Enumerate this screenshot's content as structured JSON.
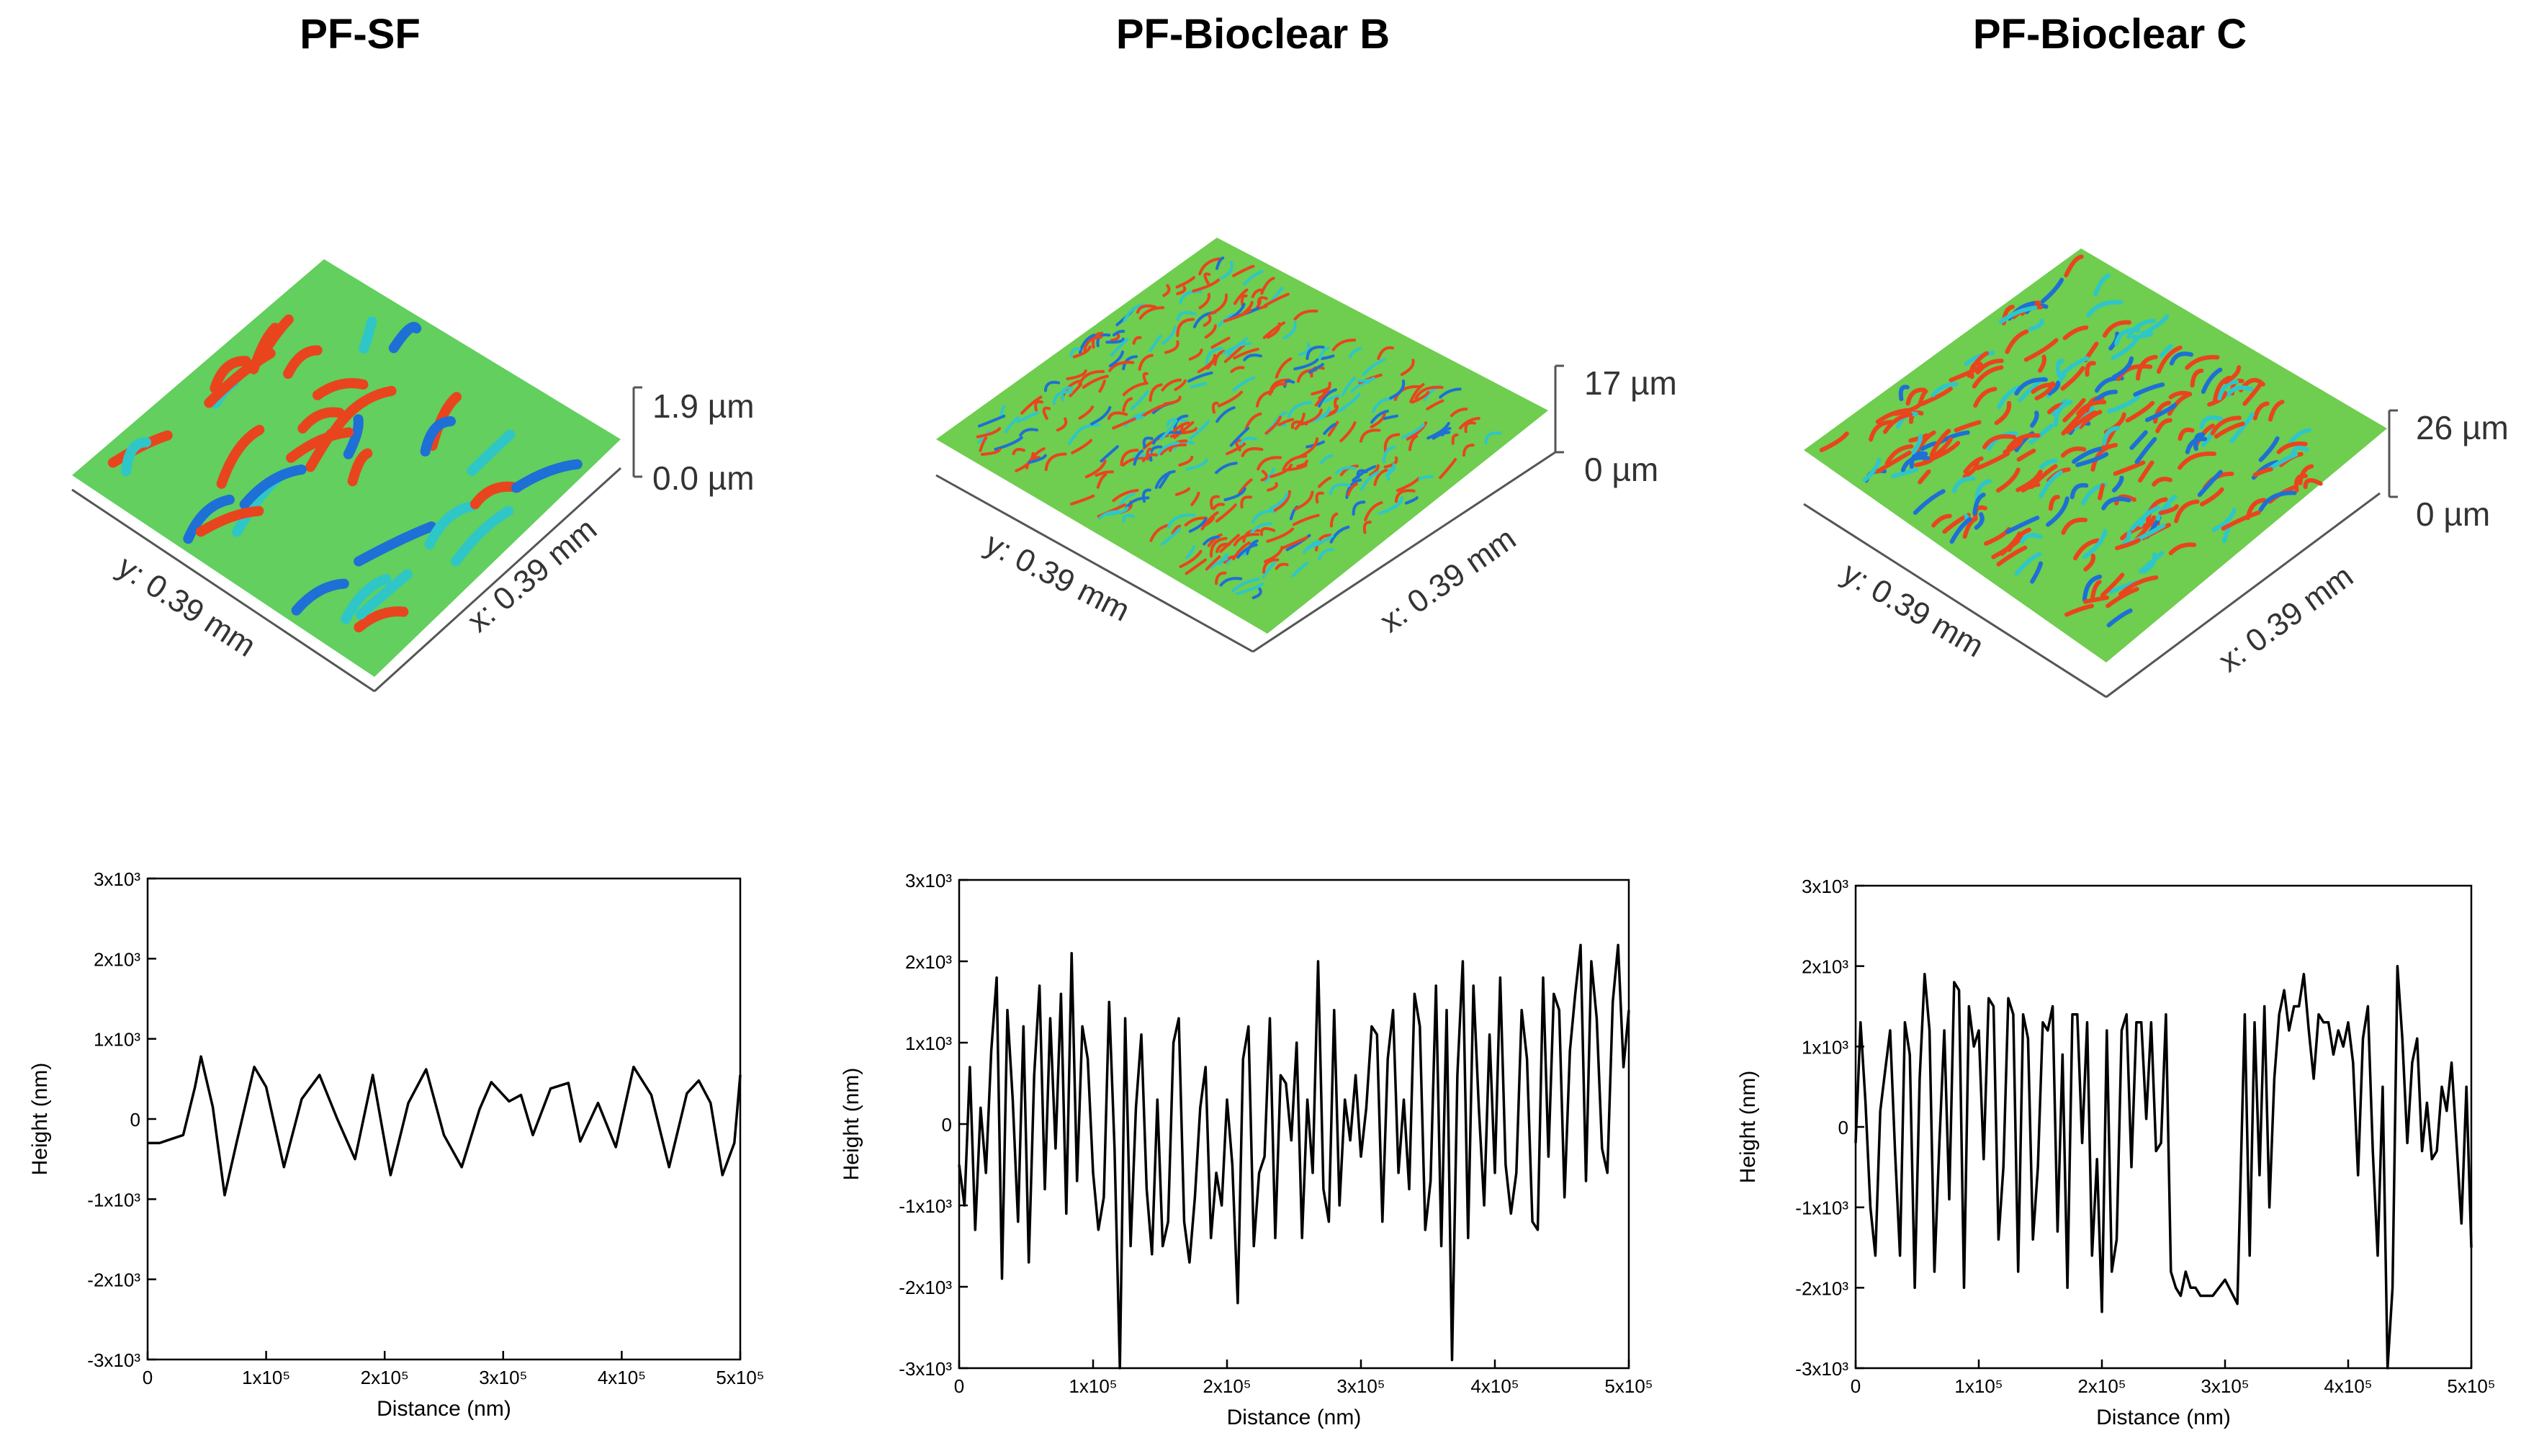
{
  "colors": {
    "line": "#000000",
    "high": "#e8451e",
    "mid": "#5fd35a",
    "low": "#1e6fd6",
    "cyan": "#2fc6c8"
  },
  "panels": [
    {
      "title": "PF-SF",
      "surface": {
        "z_max_label": "1.9 µm",
        "z_min_label": "0.0 µm",
        "y_label": "y: 0.39 mm",
        "x_label": "x: 0.39 mm",
        "texture": "coarse waves"
      },
      "profile_axis": {
        "xlabel": "Distance (nm)",
        "ylabel": "Height (nm)",
        "x_ticks": [
          "0",
          "1x10⁵",
          "2x10⁵",
          "3x10⁵",
          "4x10⁵",
          "5x10⁵"
        ],
        "y_ticks": [
          "-3x10³",
          "-2x10³",
          "-1x10³",
          "0",
          "1x10³",
          "2x10³",
          "3x10³"
        ]
      }
    },
    {
      "title": "PF-Bioclear B",
      "surface": {
        "z_max_label": "17 µm",
        "z_min_label": "0 µm",
        "y_label": "y: 0.39 mm",
        "x_label": "x: 0.39 mm",
        "texture": "fine dense"
      },
      "profile_axis": {
        "xlabel": "Distance (nm)",
        "ylabel": "Height (nm)",
        "x_ticks": [
          "0",
          "1x10⁵",
          "2x10⁵",
          "3x10⁵",
          "4x10⁵",
          "5x10⁵"
        ],
        "y_ticks": [
          "-3x10³",
          "-2x10³",
          "-1x10³",
          "0",
          "1x10³",
          "2x10³",
          "3x10³"
        ]
      }
    },
    {
      "title": "PF-Bioclear C",
      "surface": {
        "z_max_label": "26 µm",
        "z_min_label": "0 µm",
        "y_label": "y: 0.39 mm",
        "x_label": "x: 0.39 mm",
        "texture": "labyrinth"
      },
      "profile_axis": {
        "xlabel": "Distance (nm)",
        "ylabel": "Height (nm)",
        "x_ticks": [
          "0",
          "1x10⁵",
          "2x10⁵",
          "3x10⁵",
          "4x10⁵",
          "5x10⁵"
        ],
        "y_ticks": [
          "-3x10³",
          "-2x10³",
          "-1x10³",
          "0",
          "1x10³",
          "2x10³",
          "3x10³"
        ]
      }
    }
  ],
  "chart_data": [
    {
      "type": "line",
      "title": "PF-SF",
      "xlabel": "Distance (nm)",
      "ylabel": "Height (nm)",
      "xlim": [
        0,
        500000
      ],
      "ylim": [
        -3000,
        3000
      ],
      "x": [
        0,
        10000,
        20000,
        30000,
        40000,
        45000,
        55000,
        65000,
        75000,
        90000,
        100000,
        115000,
        130000,
        145000,
        160000,
        175000,
        190000,
        205000,
        220000,
        235000,
        250000,
        265000,
        280000,
        290000,
        305000,
        315000,
        325000,
        340000,
        355000,
        365000,
        380000,
        395000,
        410000,
        425000,
        440000,
        455000,
        465000,
        475000,
        485000,
        495000,
        500000
      ],
      "y": [
        -300,
        -300,
        -250,
        -200,
        400,
        780,
        150,
        -950,
        -300,
        650,
        400,
        -600,
        250,
        550,
        0,
        -500,
        550,
        -700,
        200,
        620,
        -200,
        -600,
        120,
        460,
        220,
        300,
        -200,
        380,
        450,
        -280,
        200,
        -350,
        650,
        300,
        -600,
        320,
        480,
        200,
        -700,
        -300,
        550
      ],
      "series_color": "#000000"
    },
    {
      "type": "line",
      "title": "PF-Bioclear B",
      "xlabel": "Distance (nm)",
      "ylabel": "Height (nm)",
      "xlim": [
        0,
        500000
      ],
      "ylim": [
        -3000,
        3000
      ],
      "x": [
        0,
        4000,
        8000,
        12000,
        16000,
        20000,
        24000,
        28000,
        32000,
        36000,
        40000,
        44000,
        48000,
        52000,
        56000,
        60000,
        64000,
        68000,
        72000,
        76000,
        80000,
        84000,
        88000,
        92000,
        96000,
        100000,
        104000,
        108000,
        112000,
        116000,
        120000,
        124000,
        128000,
        132000,
        136000,
        140000,
        144000,
        148000,
        152000,
        156000,
        160000,
        164000,
        168000,
        172000,
        176000,
        180000,
        184000,
        188000,
        192000,
        196000,
        200000,
        204000,
        208000,
        212000,
        216000,
        220000,
        224000,
        228000,
        232000,
        236000,
        240000,
        244000,
        248000,
        252000,
        256000,
        260000,
        264000,
        268000,
        272000,
        276000,
        280000,
        284000,
        288000,
        292000,
        296000,
        300000,
        304000,
        308000,
        312000,
        316000,
        320000,
        324000,
        328000,
        332000,
        336000,
        340000,
        344000,
        348000,
        352000,
        356000,
        360000,
        364000,
        368000,
        372000,
        376000,
        380000,
        384000,
        388000,
        392000,
        396000,
        400000,
        404000,
        408000,
        412000,
        416000,
        420000,
        424000,
        428000,
        432000,
        436000,
        440000,
        444000,
        448000,
        452000,
        456000,
        460000,
        464000,
        468000,
        472000,
        476000,
        480000,
        484000,
        488000,
        492000,
        496000,
        500000
      ],
      "y": [
        -500,
        -1000,
        700,
        -1300,
        200,
        -600,
        900,
        1800,
        -1900,
        1400,
        300,
        -1200,
        1200,
        -1700,
        600,
        1700,
        -800,
        1300,
        -300,
        1600,
        -1100,
        2100,
        -700,
        1200,
        800,
        -600,
        -1300,
        -900,
        1500,
        -300,
        -3000,
        1300,
        -1500,
        200,
        1100,
        -800,
        -1600,
        300,
        -1500,
        -1200,
        1000,
        1300,
        -1200,
        -1700,
        -900,
        200,
        700,
        -1400,
        -600,
        -1000,
        300,
        -500,
        -2200,
        800,
        1200,
        -1500,
        -600,
        -400,
        1300,
        -1400,
        600,
        500,
        -200,
        1000,
        -1400,
        300,
        -600,
        2000,
        -800,
        -1200,
        1400,
        -1000,
        300,
        -200,
        600,
        -400,
        200,
        1200,
        1100,
        -1200,
        800,
        1400,
        -600,
        300,
        -800,
        1600,
        1200,
        -1300,
        -700,
        1700,
        -1500,
        1400,
        -2900,
        600,
        2000,
        -1400,
        1700,
        200,
        -1000,
        1100,
        -600,
        1800,
        -500,
        -1100,
        -600,
        1400,
        800,
        -1200,
        -1300,
        1800,
        -400,
        1600,
        1400,
        -900,
        900,
        1600,
        2200,
        -700,
        2000,
        1300,
        -300,
        -600,
        1500,
        2200,
        700,
        1400
      ],
      "series_color": "#000000"
    },
    {
      "type": "line",
      "title": "PF-Bioclear C",
      "xlabel": "Distance (nm)",
      "ylabel": "Height (nm)",
      "xlim": [
        0,
        500000
      ],
      "ylim": [
        -3000,
        3000
      ],
      "x": [
        0,
        4000,
        8000,
        12000,
        16000,
        20000,
        24000,
        28000,
        32000,
        36000,
        40000,
        44000,
        48000,
        52000,
        56000,
        60000,
        64000,
        68000,
        72000,
        76000,
        80000,
        84000,
        88000,
        92000,
        96000,
        100000,
        104000,
        108000,
        112000,
        116000,
        120000,
        124000,
        128000,
        132000,
        136000,
        140000,
        144000,
        148000,
        152000,
        156000,
        160000,
        164000,
        168000,
        172000,
        176000,
        180000,
        184000,
        188000,
        192000,
        196000,
        200000,
        204000,
        208000,
        212000,
        216000,
        220000,
        224000,
        228000,
        232000,
        236000,
        240000,
        244000,
        248000,
        252000,
        256000,
        260000,
        264000,
        268000,
        272000,
        276000,
        280000,
        290000,
        300000,
        310000,
        316000,
        320000,
        324000,
        328000,
        332000,
        336000,
        340000,
        344000,
        348000,
        352000,
        356000,
        360000,
        364000,
        368000,
        372000,
        376000,
        380000,
        384000,
        388000,
        392000,
        396000,
        400000,
        404000,
        408000,
        412000,
        416000,
        420000,
        424000,
        428000,
        432000,
        436000,
        440000,
        444000,
        448000,
        452000,
        456000,
        460000,
        464000,
        468000,
        472000,
        476000,
        480000,
        484000,
        488000,
        492000,
        496000,
        500000
      ],
      "y": [
        -200,
        1300,
        300,
        -1000,
        -1600,
        200,
        700,
        1200,
        -300,
        -1600,
        1300,
        900,
        -2000,
        600,
        1900,
        1200,
        -1800,
        -200,
        1200,
        -900,
        1800,
        1700,
        -2000,
        1500,
        1000,
        1200,
        -400,
        1600,
        1500,
        -1400,
        -500,
        1600,
        1400,
        -1800,
        1400,
        1100,
        -1400,
        -500,
        1300,
        1200,
        1500,
        -1300,
        900,
        -2000,
        1400,
        1400,
        -200,
        1300,
        -1600,
        -400,
        -2300,
        1200,
        -1800,
        -1400,
        1200,
        1400,
        -500,
        1300,
        1300,
        100,
        1300,
        -300,
        -200,
        1400,
        -1800,
        -2000,
        -2100,
        -1800,
        -2000,
        -2000,
        -2100,
        -2100,
        -1900,
        -2200,
        1400,
        -1600,
        1300,
        -600,
        1500,
        -1000,
        600,
        1400,
        1700,
        1200,
        1500,
        1500,
        1900,
        1200,
        600,
        1400,
        1300,
        1300,
        900,
        1200,
        1000,
        1300,
        800,
        -600,
        1100,
        1500,
        -300,
        -1600,
        500,
        -3000,
        -2000,
        2000,
        1100,
        -200,
        800,
        1100,
        -300,
        300,
        -400,
        -300,
        500,
        200,
        800,
        -200,
        -1200,
        500,
        -1500
      ],
      "series_color": "#000000"
    }
  ]
}
